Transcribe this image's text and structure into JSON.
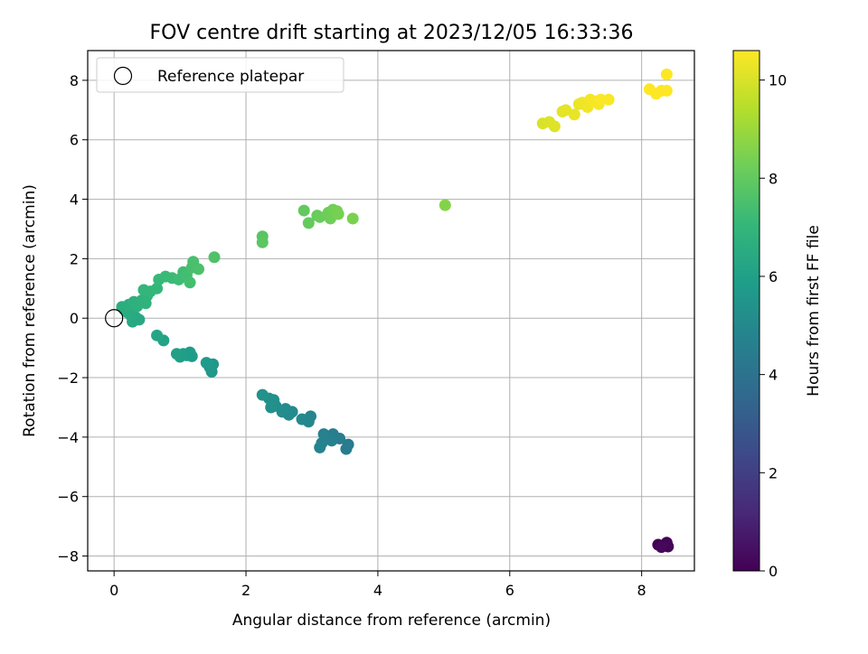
{
  "chart_data": {
    "type": "scatter",
    "title": "FOV centre drift starting at 2023/12/05 16:33:36",
    "xlabel": "Angular distance from reference (arcmin)",
    "ylabel": "Rotation from reference (arcmin)",
    "xlim": [
      -0.4,
      8.8
    ],
    "ylim": [
      -8.5,
      9.0
    ],
    "xticks": [
      0,
      2,
      4,
      6,
      8
    ],
    "yticks": [
      -8,
      -6,
      -4,
      -2,
      0,
      2,
      4,
      6,
      8
    ],
    "grid": true,
    "legend": {
      "position": "top-left",
      "entries": [
        "Reference platepar"
      ]
    },
    "reference_point": {
      "x": 0,
      "y": 0
    },
    "colorbar": {
      "label": "Hours from first FF file",
      "range": [
        0,
        10.6
      ],
      "ticks": [
        0,
        2,
        4,
        6,
        8,
        10
      ],
      "colormap": [
        "#440154",
        "#482878",
        "#3e4989",
        "#31688e",
        "#26828e",
        "#1f9e89",
        "#35b779",
        "#6ece58",
        "#b5de2b",
        "#fde725"
      ]
    },
    "points": [
      {
        "x": 8.25,
        "y": -7.62,
        "t": 0.0
      },
      {
        "x": 8.32,
        "y": -7.65,
        "t": 0.05
      },
      {
        "x": 8.38,
        "y": -7.55,
        "t": 0.1
      },
      {
        "x": 8.4,
        "y": -7.68,
        "t": 0.15
      },
      {
        "x": 8.3,
        "y": -7.7,
        "t": 0.2
      },
      {
        "x": 3.55,
        "y": -4.25,
        "t": 4.4
      },
      {
        "x": 3.52,
        "y": -4.4,
        "t": 4.45
      },
      {
        "x": 3.42,
        "y": -4.05,
        "t": 4.5
      },
      {
        "x": 3.32,
        "y": -3.9,
        "t": 4.55
      },
      {
        "x": 3.3,
        "y": -4.12,
        "t": 4.6
      },
      {
        "x": 3.18,
        "y": -3.9,
        "t": 4.65
      },
      {
        "x": 3.15,
        "y": -4.2,
        "t": 4.7
      },
      {
        "x": 3.12,
        "y": -4.35,
        "t": 4.75
      },
      {
        "x": 2.98,
        "y": -3.3,
        "t": 4.85
      },
      {
        "x": 2.95,
        "y": -3.48,
        "t": 4.9
      },
      {
        "x": 2.85,
        "y": -3.4,
        "t": 4.95
      },
      {
        "x": 2.7,
        "y": -3.15,
        "t": 5.0
      },
      {
        "x": 2.65,
        "y": -3.25,
        "t": 5.05
      },
      {
        "x": 2.6,
        "y": -3.05,
        "t": 5.1
      },
      {
        "x": 2.55,
        "y": -3.15,
        "t": 5.15
      },
      {
        "x": 2.45,
        "y": -2.95,
        "t": 5.2
      },
      {
        "x": 2.42,
        "y": -2.75,
        "t": 5.25
      },
      {
        "x": 2.38,
        "y": -3.0,
        "t": 5.3
      },
      {
        "x": 2.35,
        "y": -2.7,
        "t": 5.35
      },
      {
        "x": 2.25,
        "y": -2.58,
        "t": 5.4
      },
      {
        "x": 1.5,
        "y": -1.55,
        "t": 5.6
      },
      {
        "x": 1.48,
        "y": -1.8,
        "t": 5.62
      },
      {
        "x": 1.45,
        "y": -1.65,
        "t": 5.65
      },
      {
        "x": 1.4,
        "y": -1.5,
        "t": 5.7
      },
      {
        "x": 1.18,
        "y": -1.28,
        "t": 5.75
      },
      {
        "x": 1.15,
        "y": -1.15,
        "t": 5.8
      },
      {
        "x": 1.1,
        "y": -1.25,
        "t": 5.85
      },
      {
        "x": 1.05,
        "y": -1.2,
        "t": 5.9
      },
      {
        "x": 1.0,
        "y": -1.3,
        "t": 5.95
      },
      {
        "x": 0.95,
        "y": -1.2,
        "t": 6.0
      },
      {
        "x": 0.75,
        "y": -0.75,
        "t": 6.1
      },
      {
        "x": 0.65,
        "y": -0.58,
        "t": 6.2
      },
      {
        "x": 0.38,
        "y": -0.05,
        "t": 6.3
      },
      {
        "x": 0.32,
        "y": 0.05,
        "t": 6.35
      },
      {
        "x": 0.28,
        "y": -0.12,
        "t": 6.4
      },
      {
        "x": 0.25,
        "y": 0.1,
        "t": 6.45
      },
      {
        "x": 0.2,
        "y": 0.2,
        "t": 6.5
      },
      {
        "x": 0.15,
        "y": 0.3,
        "t": 6.55
      },
      {
        "x": 0.12,
        "y": 0.38,
        "t": 6.6
      },
      {
        "x": 0.22,
        "y": 0.45,
        "t": 6.65
      },
      {
        "x": 0.3,
        "y": 0.55,
        "t": 6.7
      },
      {
        "x": 0.35,
        "y": 0.4,
        "t": 6.75
      },
      {
        "x": 0.42,
        "y": 0.6,
        "t": 6.8
      },
      {
        "x": 0.48,
        "y": 0.5,
        "t": 6.85
      },
      {
        "x": 0.5,
        "y": 0.75,
        "t": 6.9
      },
      {
        "x": 0.45,
        "y": 0.95,
        "t": 6.95
      },
      {
        "x": 0.55,
        "y": 0.9,
        "t": 7.0
      },
      {
        "x": 0.65,
        "y": 1.0,
        "t": 7.05
      },
      {
        "x": 0.68,
        "y": 1.3,
        "t": 7.1
      },
      {
        "x": 0.78,
        "y": 1.4,
        "t": 7.15
      },
      {
        "x": 0.88,
        "y": 1.35,
        "t": 7.2
      },
      {
        "x": 0.98,
        "y": 1.3,
        "t": 7.25
      },
      {
        "x": 1.05,
        "y": 1.55,
        "t": 7.3
      },
      {
        "x": 1.1,
        "y": 1.45,
        "t": 7.35
      },
      {
        "x": 1.15,
        "y": 1.2,
        "t": 7.4
      },
      {
        "x": 1.18,
        "y": 1.7,
        "t": 7.45
      },
      {
        "x": 1.2,
        "y": 1.9,
        "t": 7.5
      },
      {
        "x": 1.28,
        "y": 1.65,
        "t": 7.55
      },
      {
        "x": 1.52,
        "y": 2.05,
        "t": 7.6
      },
      {
        "x": 2.25,
        "y": 2.75,
        "t": 7.8
      },
      {
        "x": 2.25,
        "y": 2.55,
        "t": 7.85
      },
      {
        "x": 2.88,
        "y": 3.62,
        "t": 8.0
      },
      {
        "x": 2.95,
        "y": 3.2,
        "t": 8.05
      },
      {
        "x": 3.08,
        "y": 3.45,
        "t": 8.1
      },
      {
        "x": 3.12,
        "y": 3.4,
        "t": 8.15
      },
      {
        "x": 3.25,
        "y": 3.55,
        "t": 8.2
      },
      {
        "x": 3.28,
        "y": 3.35,
        "t": 8.25
      },
      {
        "x": 3.32,
        "y": 3.65,
        "t": 8.3
      },
      {
        "x": 3.38,
        "y": 3.6,
        "t": 8.35
      },
      {
        "x": 3.4,
        "y": 3.5,
        "t": 8.4
      },
      {
        "x": 3.62,
        "y": 3.35,
        "t": 8.45
      },
      {
        "x": 5.02,
        "y": 3.8,
        "t": 8.6
      },
      {
        "x": 6.5,
        "y": 6.55,
        "t": 10.0
      },
      {
        "x": 6.6,
        "y": 6.6,
        "t": 10.05
      },
      {
        "x": 6.68,
        "y": 6.45,
        "t": 10.1
      },
      {
        "x": 6.8,
        "y": 6.95,
        "t": 10.15
      },
      {
        "x": 6.85,
        "y": 7.0,
        "t": 10.2
      },
      {
        "x": 6.98,
        "y": 6.85,
        "t": 10.25
      },
      {
        "x": 7.05,
        "y": 7.2,
        "t": 10.3
      },
      {
        "x": 7.1,
        "y": 7.25,
        "t": 10.35
      },
      {
        "x": 7.18,
        "y": 7.1,
        "t": 10.4
      },
      {
        "x": 7.22,
        "y": 7.35,
        "t": 10.45
      },
      {
        "x": 7.28,
        "y": 7.3,
        "t": 10.5
      },
      {
        "x": 7.35,
        "y": 7.2,
        "t": 10.5
      },
      {
        "x": 7.38,
        "y": 7.35,
        "t": 10.55
      },
      {
        "x": 7.5,
        "y": 7.35,
        "t": 10.55
      },
      {
        "x": 8.12,
        "y": 7.7,
        "t": 10.6
      },
      {
        "x": 8.22,
        "y": 7.55,
        "t": 10.6
      },
      {
        "x": 8.3,
        "y": 7.65,
        "t": 10.6
      },
      {
        "x": 8.38,
        "y": 7.65,
        "t": 10.6
      },
      {
        "x": 8.38,
        "y": 8.2,
        "t": 10.6
      }
    ]
  }
}
